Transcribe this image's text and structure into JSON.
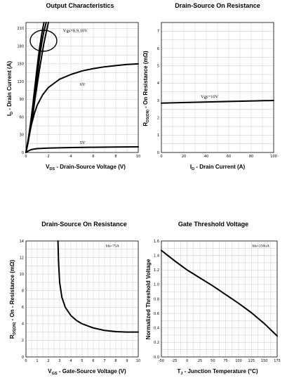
{
  "chart_data": [
    {
      "type": "line",
      "title": "Output Characteristics",
      "xlabel": "V_DS - Drain-Source Voltage (V)",
      "ylabel": "I_D - Drain Current (A)",
      "xlim": [
        0,
        10
      ],
      "ylim": [
        0,
        220
      ],
      "xticks": [
        0,
        2,
        4,
        6,
        8,
        10
      ],
      "yticks": [
        0,
        30,
        60,
        90,
        120,
        150,
        180,
        210
      ],
      "grid": true,
      "annotations": [
        {
          "text": "Vgs=8,9,10V",
          "x": 3.3,
          "y": 204
        },
        {
          "text": "6V",
          "x": 4.8,
          "y": 113
        },
        {
          "text": "5V",
          "x": 4.8,
          "y": 14
        }
      ],
      "series": [
        {
          "points": [
            [
              0,
              0
            ],
            [
              0.2,
              22
            ],
            [
              0.4,
              48
            ],
            [
              0.6,
              78
            ],
            [
              0.8,
              112
            ],
            [
              1.0,
              145
            ],
            [
              1.2,
              175
            ],
            [
              1.4,
              200
            ],
            [
              1.6,
              220
            ]
          ]
        },
        {
          "points": [
            [
              0,
              0
            ],
            [
              0.2,
              20
            ],
            [
              0.4,
              45
            ],
            [
              0.6,
              70
            ],
            [
              0.8,
              100
            ],
            [
              1.0,
              130
            ],
            [
              1.2,
              160
            ],
            [
              1.4,
              185
            ],
            [
              1.6,
              205
            ],
            [
              1.8,
              220
            ]
          ]
        },
        {
          "points": [
            [
              0,
              0
            ],
            [
              0.2,
              18
            ],
            [
              0.4,
              40
            ],
            [
              0.6,
              62
            ],
            [
              0.8,
              90
            ],
            [
              1.0,
              115
            ],
            [
              1.2,
              140
            ],
            [
              1.4,
              163
            ],
            [
              1.6,
              185
            ],
            [
              1.8,
              203
            ],
            [
              2.0,
              220
            ]
          ]
        },
        {
          "points": [
            [
              0,
              0
            ],
            [
              0.25,
              25
            ],
            [
              0.5,
              48
            ],
            [
              0.75,
              66
            ],
            [
              1.0,
              80
            ],
            [
              1.5,
              98
            ],
            [
              2.0,
              110
            ],
            [
              3.0,
              124
            ],
            [
              4.0,
              132
            ],
            [
              5.0,
              138
            ],
            [
              6.0,
              142
            ],
            [
              7.0,
              145
            ],
            [
              8.0,
              147
            ],
            [
              9.0,
              149
            ],
            [
              10,
              150
            ]
          ]
        },
        {
          "points": [
            [
              0,
              0
            ],
            [
              0.25,
              3
            ],
            [
              0.5,
              5
            ],
            [
              1.0,
              6.5
            ],
            [
              2.0,
              7.5
            ],
            [
              4.0,
              8.3
            ],
            [
              6.0,
              8.8
            ],
            [
              8.0,
              9.2
            ],
            [
              10,
              9.5
            ]
          ]
        }
      ]
    },
    {
      "type": "line",
      "title": "Drain-Source On Resistance",
      "xlabel": "I_D - Drain Current (A)",
      "ylabel": "R_DS(ON) - On Resistance (mΩ)",
      "xlim": [
        0,
        100
      ],
      "ylim": [
        0,
        7.5
      ],
      "xticks": [
        0,
        20,
        40,
        60,
        80,
        100
      ],
      "yticks": [
        0,
        1,
        2,
        3,
        4,
        5,
        6,
        7
      ],
      "grid": true,
      "annotations": [
        {
          "text": "Vgs=10V",
          "x": 35,
          "y": 3.15
        }
      ],
      "series": [
        {
          "points": [
            [
              0,
              2.85
            ],
            [
              100,
              3.0
            ]
          ]
        }
      ]
    },
    {
      "type": "line",
      "title": "Drain-Source On Resistance",
      "xlabel": "V_GS - Gate-Source Voltage (V)",
      "ylabel": "R_DS(ON) - On Resistance (mΩ)",
      "xlim": [
        0,
        10
      ],
      "ylim": [
        0,
        14
      ],
      "xticks": [
        0,
        1,
        2,
        3,
        4,
        5,
        6,
        7,
        8,
        9,
        10
      ],
      "yticks": [
        0,
        2,
        4,
        6,
        8,
        10,
        12,
        14
      ],
      "grid": true,
      "annotations": [
        {
          "text": "Ids=75A",
          "x": 8.3,
          "y": 13.3
        }
      ],
      "series": [
        {
          "points": [
            [
              2.85,
              14
            ],
            [
              2.9,
              11.5
            ],
            [
              3.0,
              9
            ],
            [
              3.2,
              7.2
            ],
            [
              3.5,
              6.0
            ],
            [
              4.0,
              5.0
            ],
            [
              4.5,
              4.4
            ],
            [
              5.0,
              4.0
            ],
            [
              6.0,
              3.5
            ],
            [
              7.0,
              3.2
            ],
            [
              8.0,
              3.05
            ],
            [
              9.0,
              3.0
            ],
            [
              10,
              3.0
            ]
          ]
        }
      ]
    },
    {
      "type": "line",
      "title": "Gate Threshold Voltage",
      "xlabel": "T_J - Junction Temperature (°C)",
      "ylabel": "Normalized Threshold Voltage",
      "xlim": [
        -50,
        175
      ],
      "ylim": [
        0,
        1.6
      ],
      "xticks": [
        -50,
        -25,
        0,
        25,
        50,
        75,
        100,
        125,
        150,
        175
      ],
      "yticks": [
        0,
        0.2,
        0.4,
        0.6,
        0.8,
        1.0,
        1.2,
        1.4,
        1.6
      ],
      "grid": true,
      "annotations": [
        {
          "text": "Ids=250uA",
          "x": 160,
          "y": 1.52
        }
      ],
      "series": [
        {
          "points": [
            [
              -50,
              1.47
            ],
            [
              -25,
              1.33
            ],
            [
              0,
              1.2
            ],
            [
              25,
              1.09
            ],
            [
              50,
              0.98
            ],
            [
              75,
              0.86
            ],
            [
              100,
              0.74
            ],
            [
              125,
              0.61
            ],
            [
              150,
              0.46
            ],
            [
              175,
              0.29
            ]
          ]
        }
      ]
    }
  ]
}
